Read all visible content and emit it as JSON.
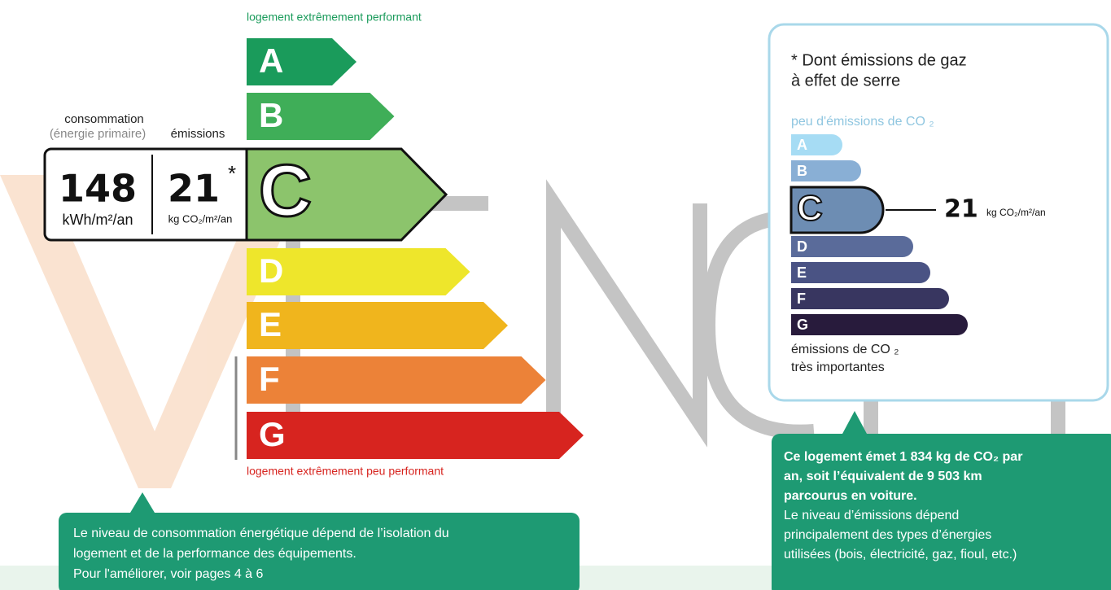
{
  "energy_label": {
    "top_caption": "logement extrêmement performant",
    "bottom_caption": "logement extrêmement peu performant",
    "classes": [
      "A",
      "B",
      "C",
      "D",
      "E",
      "F",
      "G"
    ],
    "colors": [
      "#1a9b5b",
      "#3fae58",
      "#8cc46c",
      "#eee62b",
      "#f0b51d",
      "#ec8238",
      "#d7241f"
    ],
    "rating": "C",
    "consumption_label": "consommation",
    "consumption_sub": "(énergie primaire)",
    "emissions_label": "émissions",
    "consumption_value": "148",
    "consumption_unit": "kWh/m²/an",
    "emissions_value": "21",
    "emissions_asterisk": "*",
    "emissions_unit": "kg CO₂/m²/an"
  },
  "climate_label": {
    "title_lines": [
      "* Dont émissions de gaz",
      "à effet de serre"
    ],
    "top_caption": "peu d'émissions de CO ₂",
    "bottom_caption_lines": [
      "émissions de CO ₂",
      "très importantes"
    ],
    "classes": [
      "A",
      "B",
      "C",
      "D",
      "E",
      "F",
      "G"
    ],
    "colors": [
      "#a6dcf4",
      "#89afd5",
      "#6d8db3",
      "#5a6b9a",
      "#4a5384",
      "#383660",
      "#281b3c"
    ],
    "rating": "C",
    "value": "21",
    "unit": "kg CO₂/m²/an"
  },
  "notes": {
    "consumption": [
      "Le niveau de consommation énergétique dépend de l’isolation du",
      "logement et de la performance des équipements.",
      "Pour l'améliorer, voir pages 4 à 6"
    ],
    "emissions_bold": [
      "Ce logement émet 1 834 kg de CO₂ par",
      "an, soit l’équivalent de 9 503 km",
      "parcourus en voiture."
    ],
    "emissions": [
      "Le niveau d’émissions dépend",
      "principalement des types d’énergies",
      "utilisées (bois, électricité, gaz, fioul, etc.)"
    ]
  }
}
